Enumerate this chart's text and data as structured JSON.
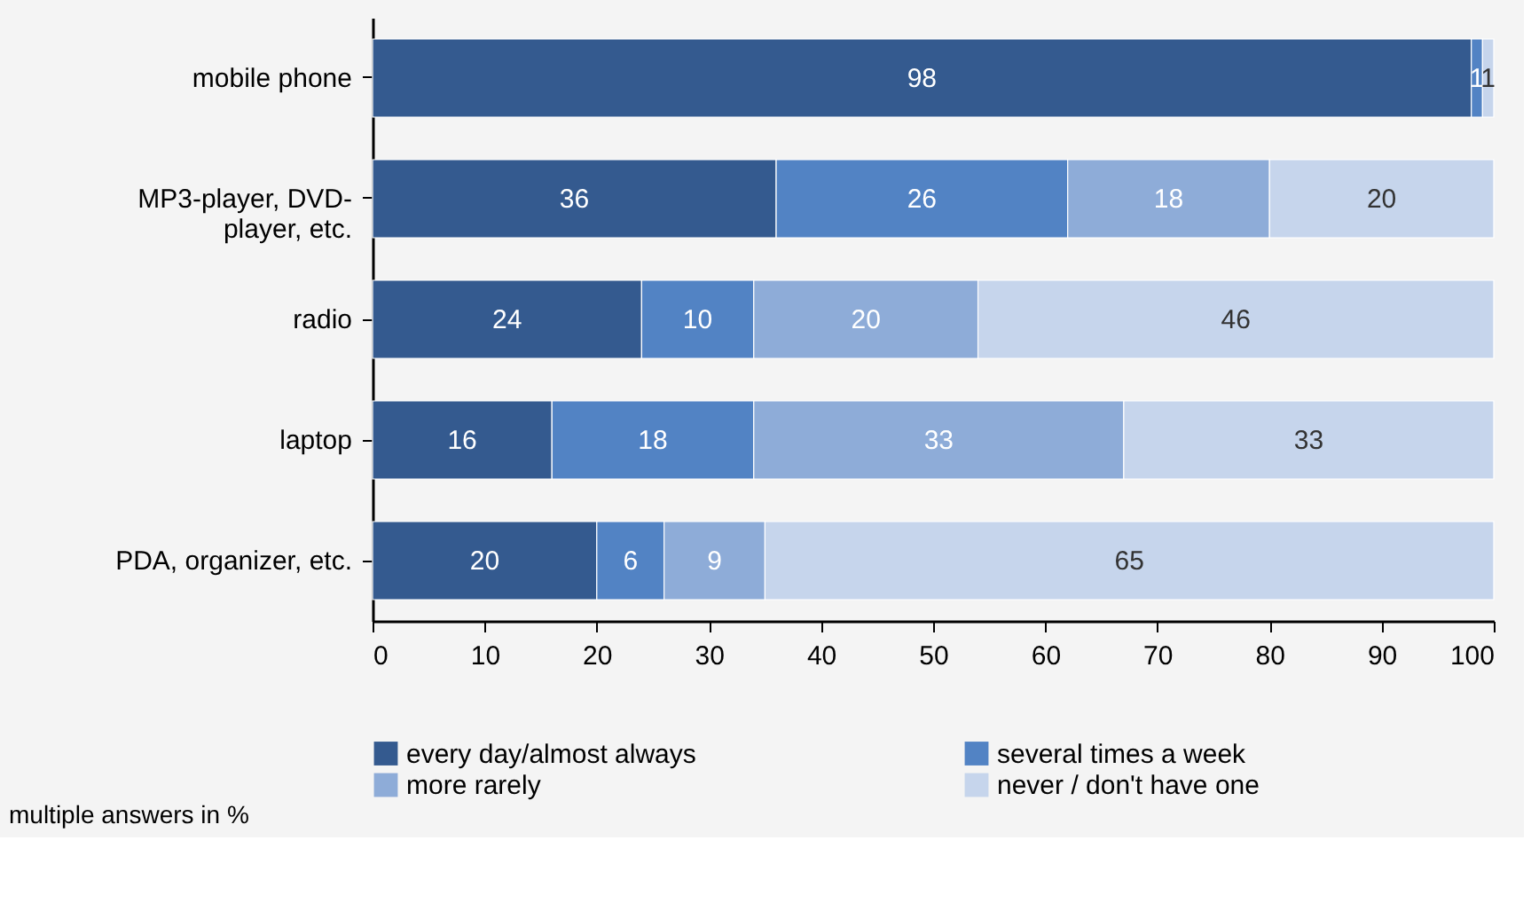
{
  "chart_data": {
    "type": "bar",
    "orientation": "horizontal",
    "stacked": true,
    "categories": [
      "mobile phone",
      "MP3-player, DVD-player, etc.",
      "radio",
      "laptop",
      "PDA, organizer, etc."
    ],
    "series": [
      {
        "name": "every day/almost always",
        "color": "#345a8f",
        "values": [
          98,
          36,
          24,
          16,
          20
        ],
        "value_labels": [
          "98",
          "36",
          "24",
          "16",
          "20"
        ]
      },
      {
        "name": "several times a week",
        "color": "#5283c4",
        "values": [
          1,
          26,
          10,
          18,
          6
        ],
        "value_labels": [
          "1",
          "26",
          "10",
          "18",
          "6"
        ]
      },
      {
        "name": "more rarely",
        "color": "#8eacd8",
        "values": [
          null,
          18,
          20,
          33,
          9
        ],
        "value_labels": [
          null,
          "18",
          "20",
          "33",
          "9"
        ]
      },
      {
        "name": "never / don't have one",
        "color": "#c6d5ec",
        "values": [
          1,
          20,
          46,
          33,
          65
        ],
        "value_labels": [
          "1",
          "20",
          "46",
          "33",
          "65"
        ]
      }
    ],
    "xlim": [
      0,
      100
    ],
    "xticks": [
      0,
      10,
      20,
      30,
      40,
      50,
      60,
      70,
      80,
      90,
      100
    ],
    "grid": false,
    "legend": "bottom",
    "annotations": [
      "multiple answers in %"
    ]
  }
}
